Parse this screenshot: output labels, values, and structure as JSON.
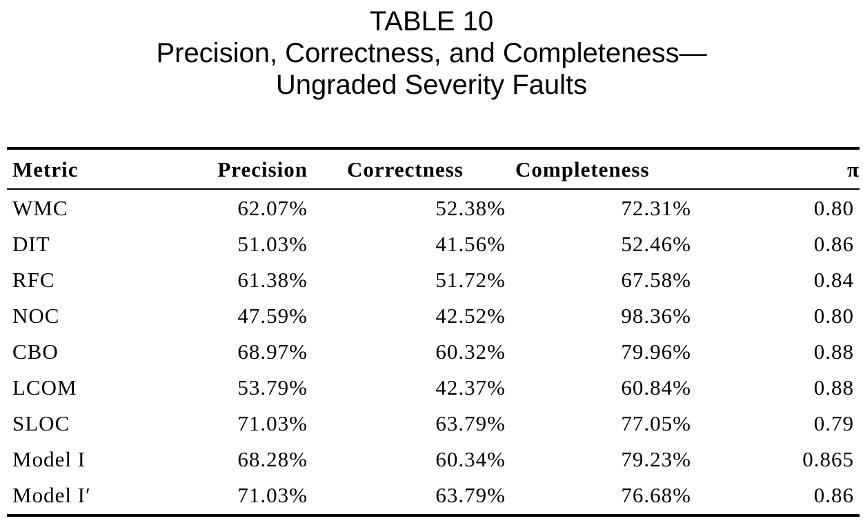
{
  "caption": {
    "label": "TABLE 10",
    "line1": "Precision, Correctness, and Completeness—",
    "line2": "Ungraded Severity Faults"
  },
  "columns": [
    "Metric",
    "Precision",
    "Correctness",
    "Completeness",
    "π"
  ],
  "rows": [
    {
      "metric": "WMC",
      "precision": "62.07%",
      "correctness": "52.38%",
      "completeness": "72.31%",
      "pi": "0.80"
    },
    {
      "metric": "DIT",
      "precision": "51.03%",
      "correctness": "41.56%",
      "completeness": "52.46%",
      "pi": "0.86"
    },
    {
      "metric": "RFC",
      "precision": "61.38%",
      "correctness": "51.72%",
      "completeness": "67.58%",
      "pi": "0.84"
    },
    {
      "metric": "NOC",
      "precision": "47.59%",
      "correctness": "42.52%",
      "completeness": "98.36%",
      "pi": "0.80"
    },
    {
      "metric": "CBO",
      "precision": "68.97%",
      "correctness": "60.32%",
      "completeness": "79.96%",
      "pi": "0.88"
    },
    {
      "metric": "LCOM",
      "precision": "53.79%",
      "correctness": "42.37%",
      "completeness": "60.84%",
      "pi": "0.88"
    },
    {
      "metric": "SLOC",
      "precision": "71.03%",
      "correctness": "63.79%",
      "completeness": "77.05%",
      "pi": "0.79"
    },
    {
      "metric": "Model I",
      "precision": "68.28%",
      "correctness": "60.34%",
      "completeness": "79.23%",
      "pi": "0.865"
    },
    {
      "metric": "Model I′",
      "precision": "71.03%",
      "correctness": "63.79%",
      "completeness": "76.68%",
      "pi": "0.86"
    }
  ]
}
